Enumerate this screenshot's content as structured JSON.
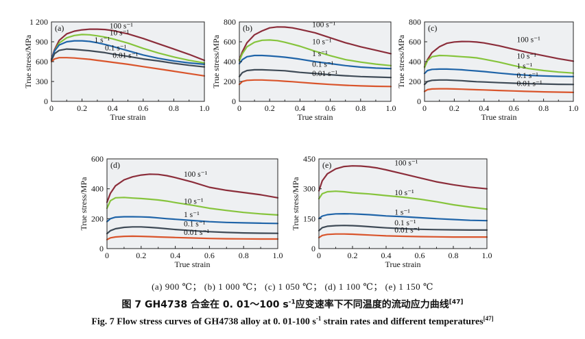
{
  "captions": {
    "subcaption": "(a) 900 ℃； (b) 1 000 ℃； (c) 1 050 ℃； (d) 1 100 ℃； (e) 1 150 ℃",
    "zh_main": "图 7 GH4738 合金在 0. 01～100 s",
    "zh_sup": "-1",
    "zh_tail": "应变速率下不同温度的流动应力曲线",
    "zh_ref": "[47]",
    "en_main": "Fig. 7 Flow stress curves of GH4738 alloy at 0. 01-100 s",
    "en_sup": "-1",
    "en_tail": " strain rates and different temperatures",
    "en_ref": "[47]"
  },
  "chart_data": [
    {
      "panel": "(a)",
      "type": "line",
      "xlabel": "True strain",
      "ylabel": "True stress/MPa",
      "xlim": [
        0,
        1.0
      ],
      "ylim": [
        0,
        1200
      ],
      "xticks": [
        "0",
        "0.2",
        "0.4",
        "0.6",
        "0.8",
        "1.0"
      ],
      "yticks": [
        {
          "v": 300,
          "t": "300"
        },
        {
          "v": 600,
          "t": "600"
        },
        {
          "v": 900,
          "t": "900"
        },
        {
          "v": 1200,
          "t": "1 200"
        }
      ],
      "x": [
        0,
        0.02,
        0.05,
        0.1,
        0.15,
        0.2,
        0.25,
        0.3,
        0.35,
        0.4,
        0.5,
        0.6,
        0.7,
        0.8,
        0.9,
        1.0
      ],
      "series": [
        {
          "name": "100 s⁻¹",
          "color": "#8b2d3a",
          "label_at": [
            0.38,
            1100
          ],
          "values": [
            640,
            780,
            920,
            1020,
            1060,
            1080,
            1090,
            1090,
            1085,
            1070,
            1020,
            950,
            870,
            790,
            710,
            620
          ]
        },
        {
          "name": "10 s⁻¹",
          "color": "#86c43c",
          "label_at": [
            0.38,
            1000
          ],
          "values": [
            620,
            760,
            880,
            960,
            995,
            1010,
            1005,
            990,
            970,
            945,
            880,
            800,
            730,
            670,
            620,
            580
          ]
        },
        {
          "name": "1 s⁻¹",
          "color": "#1f64a8",
          "label_at": [
            0.28,
            890
          ],
          "values": [
            630,
            760,
            850,
            900,
            915,
            915,
            905,
            885,
            860,
            830,
            765,
            700,
            650,
            610,
            580,
            560
          ]
        },
        {
          "name": "0.1 s⁻¹",
          "color": "#3e4a56",
          "label_at": [
            0.35,
            770
          ],
          "values": [
            620,
            720,
            770,
            790,
            785,
            775,
            765,
            750,
            735,
            715,
            680,
            640,
            610,
            575,
            545,
            520
          ]
        },
        {
          "name": "0.01 s⁻¹",
          "color": "#d9542b",
          "label_at": [
            0.4,
            655
          ],
          "values": [
            600,
            640,
            660,
            660,
            655,
            645,
            635,
            620,
            605,
            590,
            560,
            525,
            490,
            455,
            420,
            385
          ]
        }
      ]
    },
    {
      "panel": "(b)",
      "type": "line",
      "xlabel": "True strain",
      "ylabel": "True stress/MPa",
      "xlim": [
        0,
        1.0
      ],
      "ylim": [
        0,
        800
      ],
      "xticks": [
        "0",
        "0.2",
        "0.4",
        "0.6",
        "0.8",
        "1.0"
      ],
      "yticks": [
        {
          "v": 200,
          "t": "200"
        },
        {
          "v": 400,
          "t": "400"
        },
        {
          "v": 600,
          "t": "600"
        },
        {
          "v": 800,
          "t": "800"
        }
      ],
      "x": [
        0,
        0.02,
        0.05,
        0.1,
        0.15,
        0.2,
        0.25,
        0.3,
        0.35,
        0.4,
        0.5,
        0.6,
        0.7,
        0.8,
        0.9,
        1.0
      ],
      "series": [
        {
          "name": "100 s⁻¹",
          "color": "#8b2d3a",
          "label_at": [
            0.48,
            750
          ],
          "values": [
            420,
            500,
            590,
            670,
            710,
            740,
            750,
            748,
            740,
            725,
            690,
            640,
            590,
            550,
            515,
            480
          ]
        },
        {
          "name": "10 s⁻¹",
          "color": "#86c43c",
          "label_at": [
            0.48,
            575
          ],
          "values": [
            410,
            480,
            550,
            595,
            615,
            618,
            612,
            595,
            575,
            555,
            505,
            460,
            420,
            395,
            375,
            360
          ]
        },
        {
          "name": "1 s⁻¹",
          "color": "#1f64a8",
          "label_at": [
            0.48,
            455
          ],
          "values": [
            380,
            420,
            450,
            462,
            462,
            458,
            452,
            445,
            435,
            425,
            400,
            380,
            360,
            345,
            335,
            330
          ]
        },
        {
          "name": "0.1 s⁻¹",
          "color": "#3e4a56",
          "label_at": [
            0.48,
            350
          ],
          "values": [
            250,
            290,
            310,
            318,
            318,
            315,
            312,
            308,
            300,
            292,
            280,
            268,
            258,
            250,
            245,
            240
          ]
        },
        {
          "name": "0.01 s⁻¹",
          "color": "#d9542b",
          "label_at": [
            0.48,
            255
          ],
          "values": [
            170,
            200,
            212,
            215,
            215,
            212,
            208,
            203,
            198,
            192,
            180,
            170,
            162,
            156,
            152,
            150
          ]
        }
      ]
    },
    {
      "panel": "(c)",
      "type": "line",
      "xlabel": "True strain",
      "ylabel": "True stress/MPa",
      "xlim": [
        0,
        1.0
      ],
      "ylim": [
        0,
        800
      ],
      "xticks": [
        "0",
        "0.2",
        "0.4",
        "0.6",
        "0.8",
        "1.0"
      ],
      "yticks": [
        {
          "v": 200,
          "t": "200"
        },
        {
          "v": 400,
          "t": "400"
        },
        {
          "v": 600,
          "t": "600"
        },
        {
          "v": 800,
          "t": "800"
        }
      ],
      "x": [
        0,
        0.02,
        0.05,
        0.1,
        0.15,
        0.2,
        0.25,
        0.3,
        0.35,
        0.4,
        0.5,
        0.6,
        0.7,
        0.8,
        0.9,
        1.0
      ],
      "series": [
        {
          "name": "100 s⁻¹",
          "color": "#8b2d3a",
          "label_at": [
            0.62,
            595
          ],
          "values": [
            350,
            420,
            490,
            550,
            585,
            598,
            603,
            602,
            597,
            588,
            560,
            525,
            490,
            460,
            430,
            405
          ]
        },
        {
          "name": "10 s⁻¹",
          "color": "#86c43c",
          "label_at": [
            0.62,
            430
          ],
          "values": [
            340,
            410,
            450,
            462,
            460,
            455,
            450,
            445,
            438,
            425,
            395,
            360,
            330,
            310,
            295,
            285
          ]
        },
        {
          "name": "1 s⁻¹",
          "color": "#1f64a8",
          "label_at": [
            0.62,
            330
          ],
          "values": [
            280,
            310,
            322,
            325,
            325,
            322,
            318,
            312,
            306,
            300,
            285,
            272,
            262,
            256,
            252,
            250
          ]
        },
        {
          "name": "0.1 s⁻¹",
          "color": "#3e4a56",
          "label_at": [
            0.62,
            235
          ],
          "values": [
            170,
            200,
            212,
            215,
            215,
            212,
            208,
            203,
            198,
            195,
            188,
            183,
            178,
            175,
            172,
            170
          ]
        },
        {
          "name": "0.01 s⁻¹",
          "color": "#d9542b",
          "label_at": [
            0.62,
            155
          ],
          "values": [
            100,
            118,
            125,
            127,
            127,
            125,
            123,
            120,
            117,
            115,
            110,
            105,
            100,
            96,
            93,
            90
          ]
        }
      ]
    },
    {
      "panel": "(d)",
      "type": "line",
      "xlabel": "True strain",
      "ylabel": "True stress/MPa",
      "xlim": [
        0,
        1.0
      ],
      "ylim": [
        0,
        600
      ],
      "xticks": [
        "0",
        "0.2",
        "0.4",
        "0.6",
        "0.8",
        "1.0"
      ],
      "yticks": [
        {
          "v": 200,
          "t": "200"
        },
        {
          "v": 400,
          "t": "400"
        },
        {
          "v": 600,
          "t": "600"
        }
      ],
      "x": [
        0,
        0.02,
        0.05,
        0.1,
        0.15,
        0.2,
        0.25,
        0.3,
        0.35,
        0.4,
        0.5,
        0.6,
        0.7,
        0.8,
        0.9,
        1.0
      ],
      "series": [
        {
          "name": "100 s⁻¹",
          "color": "#8b2d3a",
          "label_at": [
            0.45,
            480
          ],
          "values": [
            310,
            370,
            420,
            460,
            480,
            492,
            498,
            496,
            488,
            475,
            445,
            410,
            390,
            375,
            360,
            340
          ]
        },
        {
          "name": "10 s⁻¹",
          "color": "#86c43c",
          "label_at": [
            0.45,
            300
          ],
          "values": [
            270,
            320,
            340,
            342,
            338,
            335,
            330,
            325,
            318,
            308,
            290,
            270,
            255,
            242,
            232,
            225
          ]
        },
        {
          "name": "1 s⁻¹",
          "color": "#1f64a8",
          "label_at": [
            0.45,
            210
          ],
          "values": [
            180,
            200,
            210,
            213,
            213,
            212,
            210,
            205,
            200,
            196,
            188,
            180,
            175,
            172,
            170,
            168
          ]
        },
        {
          "name": "0.1 s⁻¹",
          "color": "#3e4a56",
          "label_at": [
            0.45,
            148
          ],
          "values": [
            100,
            120,
            133,
            142,
            145,
            145,
            142,
            138,
            133,
            128,
            120,
            113,
            108,
            105,
            103,
            102
          ]
        },
        {
          "name": "0.01 s⁻¹",
          "color": "#d9542b",
          "label_at": [
            0.45,
            92
          ],
          "values": [
            60,
            72,
            78,
            82,
            83,
            82,
            80,
            78,
            76,
            74,
            71,
            68,
            66,
            65,
            64,
            64
          ]
        }
      ]
    },
    {
      "panel": "(e)",
      "type": "line",
      "xlabel": "True strain",
      "ylabel": "True stress/MPa",
      "xlim": [
        0,
        1.0
      ],
      "ylim": [
        0,
        450
      ],
      "xticks": [
        "0",
        "0.2",
        "0.4",
        "0.6",
        "0.8",
        "1.0"
      ],
      "yticks": [
        {
          "v": 150,
          "t": "150"
        },
        {
          "v": 300,
          "t": "300"
        },
        {
          "v": 450,
          "t": "450"
        }
      ],
      "x": [
        0,
        0.02,
        0.05,
        0.1,
        0.15,
        0.2,
        0.25,
        0.3,
        0.35,
        0.4,
        0.5,
        0.6,
        0.7,
        0.8,
        0.9,
        1.0
      ],
      "series": [
        {
          "name": "100 s⁻¹",
          "color": "#8b2d3a",
          "label_at": [
            0.45,
            418
          ],
          "values": [
            290,
            340,
            375,
            400,
            412,
            415,
            414,
            410,
            404,
            395,
            375,
            355,
            335,
            320,
            308,
            300
          ]
        },
        {
          "name": "10 s⁻¹",
          "color": "#86c43c",
          "label_at": [
            0.45,
            268
          ],
          "values": [
            250,
            275,
            285,
            288,
            285,
            280,
            277,
            274,
            270,
            266,
            258,
            248,
            235,
            220,
            208,
            198
          ]
        },
        {
          "name": "1 s⁻¹",
          "color": "#1f64a8",
          "label_at": [
            0.45,
            170
          ],
          "values": [
            150,
            163,
            170,
            174,
            175,
            174,
            172,
            170,
            167,
            164,
            160,
            155,
            150,
            146,
            142,
            140
          ]
        },
        {
          "name": "0.1 s⁻¹",
          "color": "#3e4a56",
          "label_at": [
            0.45,
            117
          ],
          "values": [
            90,
            105,
            112,
            115,
            116,
            115,
            113,
            110,
            107,
            104,
            100,
            97,
            95,
            94,
            93,
            93
          ]
        },
        {
          "name": "0.01 s⁻¹",
          "color": "#d9542b",
          "label_at": [
            0.45,
            80
          ],
          "values": [
            55,
            66,
            71,
            73,
            73,
            72,
            70,
            68,
            66,
            64,
            62,
            60,
            59,
            58,
            58,
            58
          ]
        }
      ]
    }
  ]
}
